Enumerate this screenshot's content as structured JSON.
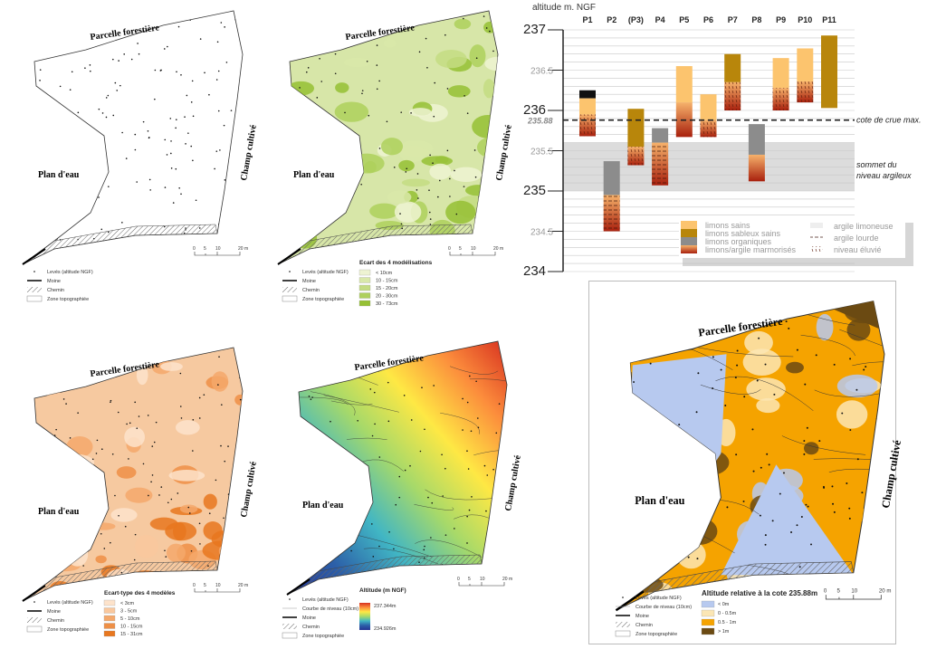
{
  "map_labels": {
    "forest": "Parcelle forestière",
    "water": "Plan d'eau",
    "field": "Champ cultivé"
  },
  "scale_bar": {
    "ticks": [
      "0",
      "5",
      "10",
      "20 m"
    ]
  },
  "common_legend": {
    "points": "Levés (altitude NGF)",
    "contour": "Courbe de niveau (10cm)",
    "moine": "Moine",
    "path": "Chemin",
    "zone": "Zone topographiée"
  },
  "maps": [
    {
      "id": "survey-points",
      "fill": "#ffffff",
      "legend_title": "",
      "classes": []
    },
    {
      "id": "model-difference",
      "fill": "#d7e6a8",
      "legend_title": "Ecart des 4 modélisations",
      "classes": [
        {
          "label": "< 10cm",
          "color": "#eef3d2"
        },
        {
          "label": "10 - 15cm",
          "color": "#d9e8a9"
        },
        {
          "label": "15 - 20cm",
          "color": "#c4dc82"
        },
        {
          "label": "20 - 30cm",
          "color": "#aed05c"
        },
        {
          "label": "30 - 73cm",
          "color": "#95c034"
        }
      ]
    },
    {
      "id": "model-stddev",
      "fill": "#f6c9a0",
      "legend_title": "Ecart-type des 4 modèles",
      "classes": [
        {
          "label": "< 3cm",
          "color": "#fde3cb"
        },
        {
          "label": "3 - 5cm",
          "color": "#f9c89e"
        },
        {
          "label": "5 - 10cm",
          "color": "#f4a86b"
        },
        {
          "label": "10 - 15cm",
          "color": "#ee8f46"
        },
        {
          "label": "15 - 31cm",
          "color": "#e8771f"
        }
      ]
    },
    {
      "id": "altitude",
      "fill": "#4aa3d8",
      "legend_title": "Altitude (m NGF)",
      "ramp": {
        "max": "237.344m",
        "min": "234.926m"
      },
      "ramp_colors": [
        "#d7301f",
        "#fc8d3c",
        "#fee844",
        "#a6d96a",
        "#41b6c4",
        "#2c5fa8",
        "#253494"
      ]
    },
    {
      "id": "relative-altitude",
      "fill": "#f5a300",
      "legend_title": "Altitude relative à la cote 235.88m",
      "classes": [
        {
          "label": "< 0m",
          "color": "#b7c9ef"
        },
        {
          "label": "0 - 0.5m",
          "color": "#fbe6b4"
        },
        {
          "label": "0.5 - 1m",
          "color": "#f5a300"
        },
        {
          "label": "> 1m",
          "color": "#6b4a12"
        }
      ]
    }
  ],
  "chart_data": {
    "type": "bar",
    "ylabel": "altitude m. NGF",
    "ylim": [
      234,
      237
    ],
    "major_ticks": [
      "234",
      "234.5",
      "235",
      "235.5",
      "236",
      "236.5",
      "237"
    ],
    "categories": [
      "P1",
      "P2",
      "(P3)",
      "P4",
      "P5",
      "P6",
      "P7",
      "P8",
      "P9",
      "P10",
      "P11"
    ],
    "profiles": [
      {
        "name": "P1",
        "layers": [
          {
            "type": "black",
            "top": 236.25,
            "bottom": 236.15
          },
          {
            "type": "limons sains",
            "top": 236.15,
            "bottom": 235.95
          },
          {
            "type": "limons/argile marmorisés",
            "top": 235.95,
            "bottom": 235.68,
            "texture": "niveau éluvié"
          }
        ]
      },
      {
        "name": "P2",
        "layers": [
          {
            "type": "limons organiques",
            "top": 235.37,
            "bottom": 234.95
          },
          {
            "type": "limons/argile marmorisés",
            "top": 234.95,
            "bottom": 234.5,
            "texture": "argile lourde"
          }
        ]
      },
      {
        "name": "(P3)",
        "layers": [
          {
            "type": "limons sableux sains",
            "top": 236.02,
            "bottom": 235.55
          },
          {
            "type": "limons/argile marmorisés",
            "top": 235.55,
            "bottom": 235.32,
            "texture": "niveau éluvié"
          }
        ]
      },
      {
        "name": "P4",
        "layers": [
          {
            "type": "limons organiques",
            "top": 235.78,
            "bottom": 235.6
          },
          {
            "type": "limons/argile marmorisés",
            "top": 235.6,
            "bottom": 235.07,
            "texture": "argile lourde"
          }
        ]
      },
      {
        "name": "P5",
        "layers": [
          {
            "type": "limons sains",
            "top": 236.55,
            "bottom": 236.1
          },
          {
            "type": "limons/argile marmorisés",
            "top": 236.1,
            "bottom": 235.67
          }
        ]
      },
      {
        "name": "P6",
        "layers": [
          {
            "type": "limons sains",
            "top": 236.2,
            "bottom": 235.88
          },
          {
            "type": "limons/argile marmorisés",
            "top": 235.88,
            "bottom": 235.67,
            "texture": "niveau éluvié"
          }
        ]
      },
      {
        "name": "P7",
        "layers": [
          {
            "type": "limons sableux sains",
            "top": 236.7,
            "bottom": 236.35
          },
          {
            "type": "limons/argile marmorisés",
            "top": 236.35,
            "bottom": 236.0,
            "texture": "niveau éluvié"
          }
        ]
      },
      {
        "name": "P8",
        "layers": [
          {
            "type": "limons organiques",
            "top": 235.83,
            "bottom": 235.45
          },
          {
            "type": "limons/argile marmorisés",
            "top": 235.45,
            "bottom": 235.12
          }
        ]
      },
      {
        "name": "P9",
        "layers": [
          {
            "type": "limons sains",
            "top": 236.65,
            "bottom": 236.28
          },
          {
            "type": "limons/argile marmorisés",
            "top": 236.28,
            "bottom": 236.0,
            "texture": "niveau éluvié"
          }
        ]
      },
      {
        "name": "P10",
        "layers": [
          {
            "type": "limons sains",
            "top": 236.77,
            "bottom": 236.36
          },
          {
            "type": "limons/argile marmorisés",
            "top": 236.36,
            "bottom": 236.1,
            "texture": "niveau éluvié"
          }
        ]
      },
      {
        "name": "P11",
        "layers": [
          {
            "type": "limons sableux sains",
            "top": 236.93,
            "bottom": 236.03
          }
        ]
      }
    ],
    "flood_level": {
      "value": 235.88,
      "label": "235.88",
      "text": "cote de crue max."
    },
    "clay_band": {
      "top": 235.6,
      "bottom": 235.0,
      "text1": "sommet du",
      "text2": "niveau argileux"
    },
    "legend": [
      {
        "label": "limons sains",
        "color": "#fcc46e"
      },
      {
        "label": "limons sableux sains",
        "color": "#b8860b"
      },
      {
        "label": "limons organiques",
        "color": "#8c8c8c"
      },
      {
        "label": "limons/argile marmorisés",
        "color": "#c0392b"
      }
    ],
    "texture_legend": [
      "argile limoneuse",
      "argile lourde",
      "niveau éluvié"
    ]
  }
}
